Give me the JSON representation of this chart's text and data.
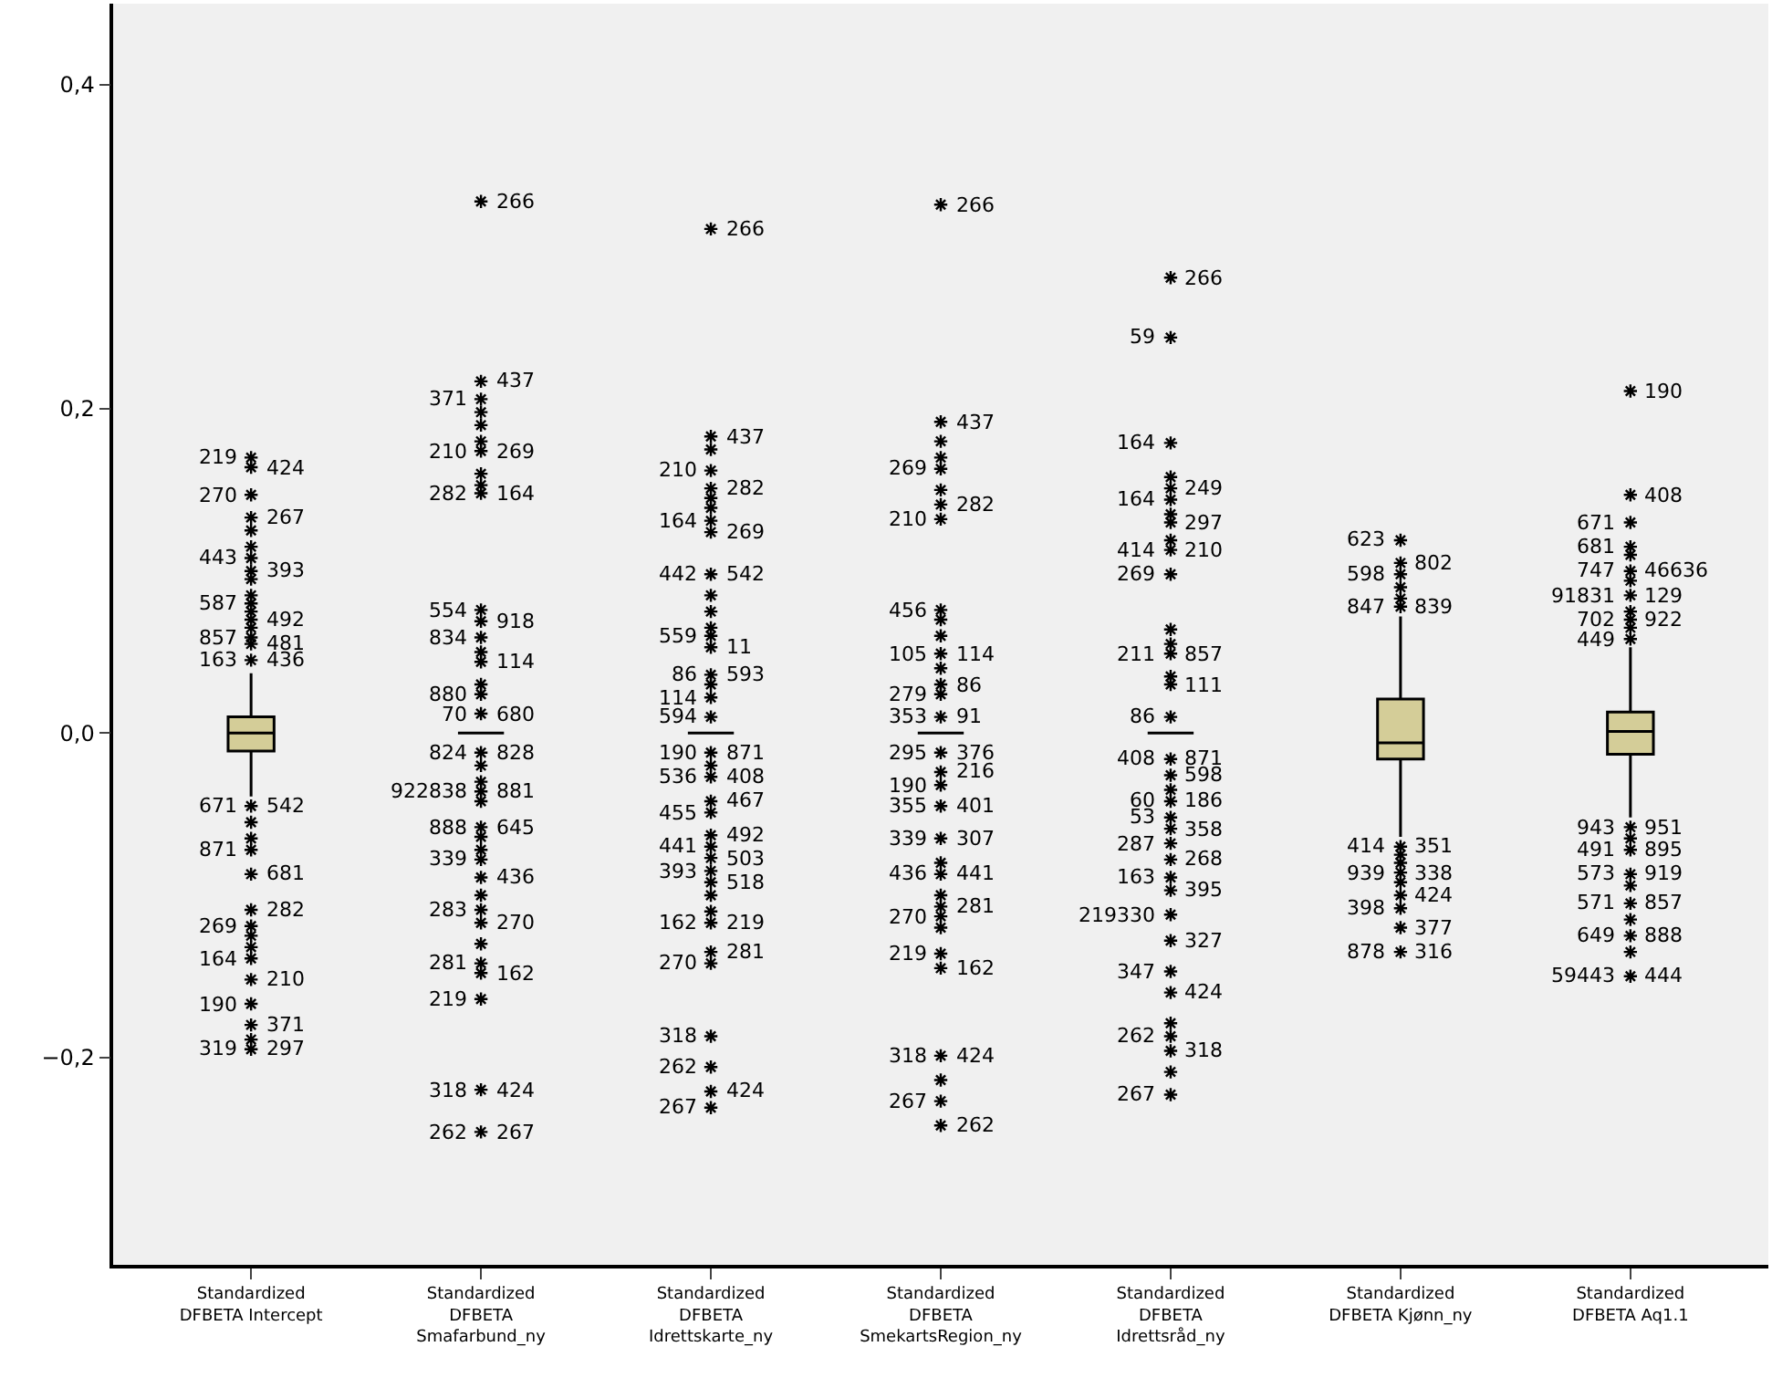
{
  "chart_data": {
    "type": "box",
    "categories": [
      "Standardized DFBETA Intercept",
      "Standardized DFBETA Smafarbund_ny",
      "Standardized DFBETA Idrettskarte_ny",
      "Standardized DFBETA SmekartsRegion_ny",
      "Standardized DFBETA Idrettsråd_ny",
      "Standardized DFBETA Kjønn_ny",
      "Standardized DFBETA Aq1.1"
    ],
    "boxes": [
      {
        "low": -0.039,
        "q1": -0.011,
        "median": 0.0,
        "q3": 0.01,
        "high": 0.037,
        "outliers": [
          0.125,
          0.115,
          0.095,
          0.085,
          0.075,
          0.065,
          -0.055,
          -0.065,
          -0.125,
          -0.132,
          -0.189
        ]
      },
      {
        "low": 0.0,
        "q1": 0.0,
        "median": 0.0,
        "q3": 0.0,
        "high": 0.0,
        "outliers": [
          0.198,
          0.19,
          0.18,
          0.16,
          0.153,
          0.05,
          0.03,
          -0.02,
          -0.03,
          -0.042,
          -0.064,
          -0.072,
          -0.1,
          -0.13
        ]
      },
      {
        "low": 0.0,
        "q1": 0.0,
        "median": 0.0,
        "q3": 0.0,
        "high": 0.0,
        "outliers": [
          0.175,
          0.145,
          0.139,
          0.085,
          0.075,
          0.065,
          0.03,
          -0.02,
          -0.1,
          -0.11
        ]
      },
      {
        "low": 0.0,
        "q1": 0.0,
        "median": 0.0,
        "q3": 0.0,
        "high": 0.0,
        "outliers": [
          0.18,
          0.17,
          0.15,
          0.07,
          0.06,
          0.04,
          -0.08,
          -0.1,
          -0.12,
          -0.214
        ]
      },
      {
        "low": 0.0,
        "q1": 0.0,
        "median": 0.0,
        "q3": 0.0,
        "high": 0.0,
        "outliers": [
          0.158,
          0.135,
          0.119,
          0.064,
          0.055,
          0.035,
          -0.035,
          -0.179,
          -0.209
        ]
      },
      {
        "low": -0.064,
        "q1": -0.016,
        "median": -0.006,
        "q3": 0.021,
        "high": 0.072,
        "outliers": [
          0.09,
          0.083,
          -0.075,
          -0.08,
          -0.092
        ]
      },
      {
        "low": -0.052,
        "q1": -0.013,
        "median": 0.001,
        "q3": 0.013,
        "high": 0.053,
        "outliers": [
          0.11,
          0.094,
          0.075,
          0.065,
          -0.065,
          -0.094,
          -0.115,
          -0.135
        ]
      }
    ],
    "colors": [
      "#d4cd98",
      "#000000",
      "#000000",
      "#000000",
      "#000000",
      "#d4cd98",
      "#d4cd98"
    ],
    "marker": "cross",
    "grid": false,
    "ylim": [
      -0.328,
      0.45
    ],
    "yticks": [
      {
        "value": -0.2,
        "label": "−0,2"
      },
      {
        "value": 0.0,
        "label": "0,0"
      },
      {
        "value": 0.2,
        "label": "0,2"
      },
      {
        "value": 0.4,
        "label": "0,4"
      }
    ],
    "series": [
      {
        "type": "scatter",
        "color": "#000000",
        "x": [
          "Standardized DFBETA Intercept",
          "Standardized DFBETA Intercept",
          "Standardized DFBETA Intercept",
          "Standardized DFBETA Intercept",
          "Standardized DFBETA Intercept",
          "Standardized DFBETA Intercept",
          "Standardized DFBETA Intercept",
          "Standardized DFBETA Intercept",
          "Standardized DFBETA Intercept",
          "Standardized DFBETA Intercept",
          "Standardized DFBETA Intercept",
          "Standardized DFBETA Intercept",
          "Standardized DFBETA Intercept",
          "Standardized DFBETA Intercept",
          "Standardized DFBETA Intercept",
          "Standardized DFBETA Intercept",
          "Standardized DFBETA Intercept",
          "Standardized DFBETA Intercept",
          "Standardized DFBETA Intercept",
          "Standardized DFBETA Intercept",
          "Standardized DFBETA Intercept"
        ],
        "values": [
          0.17,
          0.164,
          0.147,
          0.133,
          0.108,
          0.1,
          0.08,
          0.07,
          0.059,
          0.055,
          0.045,
          -0.045,
          -0.072,
          -0.087,
          -0.109,
          -0.119,
          -0.139,
          -0.152,
          -0.167,
          -0.18,
          -0.195
        ]
      },
      {
        "type": "scatter",
        "color": "#000000",
        "x": [
          "Standardized DFBETA Smafarbund_ny",
          "Standardized DFBETA Smafarbund_ny",
          "Standardized DFBETA Smafarbund_ny",
          "Standardized DFBETA Smafarbund_ny",
          "Standardized DFBETA Smafarbund_ny",
          "Standardized DFBETA Smafarbund_ny",
          "Standardized DFBETA Smafarbund_ny",
          "Standardized DFBETA Smafarbund_ny",
          "Standardized DFBETA Smafarbund_ny",
          "Standardized DFBETA Smafarbund_ny",
          "Standardized DFBETA Smafarbund_ny",
          "Standardized DFBETA Smafarbund_ny",
          "Standardized DFBETA Smafarbund_ny",
          "Standardized DFBETA Smafarbund_ny",
          "Standardized DFBETA Smafarbund_ny",
          "Standardized DFBETA Smafarbund_ny",
          "Standardized DFBETA Smafarbund_ny",
          "Standardized DFBETA Smafarbund_ny",
          "Standardized DFBETA Smafarbund_ny",
          "Standardized DFBETA Smafarbund_ny",
          "Standardized DFBETA Smafarbund_ny",
          "Standardized DFBETA Smafarbund_ny",
          "Standardized DFBETA Smafarbund_ny"
        ],
        "values": [
          0.328,
          0.217,
          0.206,
          0.174,
          0.148,
          0.076,
          0.069,
          0.059,
          0.044,
          0.024,
          0.012,
          -0.012,
          -0.036,
          -0.058,
          -0.078,
          -0.089,
          -0.109,
          -0.117,
          -0.142,
          -0.148,
          -0.164,
          -0.22,
          -0.246
        ]
      },
      {
        "type": "scatter",
        "color": "#000000",
        "x": [
          "Standardized DFBETA Idrettskarte_ny",
          "Standardized DFBETA Idrettskarte_ny",
          "Standardized DFBETA Idrettskarte_ny",
          "Standardized DFBETA Idrettskarte_ny",
          "Standardized DFBETA Idrettskarte_ny",
          "Standardized DFBETA Idrettskarte_ny",
          "Standardized DFBETA Idrettskarte_ny",
          "Standardized DFBETA Idrettskarte_ny",
          "Standardized DFBETA Idrettskarte_ny",
          "Standardized DFBETA Idrettskarte_ny",
          "Standardized DFBETA Idrettskarte_ny",
          "Standardized DFBETA Idrettskarte_ny",
          "Standardized DFBETA Idrettskarte_ny",
          "Standardized DFBETA Idrettskarte_ny",
          "Standardized DFBETA Idrettskarte_ny",
          "Standardized DFBETA Idrettskarte_ny",
          "Standardized DFBETA Idrettskarte_ny",
          "Standardized DFBETA Idrettskarte_ny",
          "Standardized DFBETA Idrettskarte_ny",
          "Standardized DFBETA Idrettskarte_ny",
          "Standardized DFBETA Idrettskarte_ny",
          "Standardized DFBETA Idrettskarte_ny",
          "Standardized DFBETA Idrettskarte_ny",
          "Standardized DFBETA Idrettskarte_ny",
          "Standardized DFBETA Idrettskarte_ny",
          "Standardized DFBETA Idrettskarte_ny",
          "Standardized DFBETA Idrettskarte_ny",
          "Standardized DFBETA Idrettskarte_ny"
        ],
        "values": [
          0.311,
          0.183,
          0.162,
          0.151,
          0.131,
          0.124,
          0.098,
          0.06,
          0.053,
          0.036,
          0.022,
          0.01,
          -0.012,
          -0.027,
          -0.042,
          -0.049,
          -0.063,
          -0.07,
          -0.077,
          -0.085,
          -0.092,
          -0.117,
          -0.135,
          -0.142,
          -0.187,
          -0.206,
          -0.221,
          -0.231
        ]
      },
      {
        "type": "scatter",
        "color": "#000000",
        "x": [
          "Standardized DFBETA SmekartsRegion_ny",
          "Standardized DFBETA SmekartsRegion_ny",
          "Standardized DFBETA SmekartsRegion_ny",
          "Standardized DFBETA SmekartsRegion_ny",
          "Standardized DFBETA SmekartsRegion_ny",
          "Standardized DFBETA SmekartsRegion_ny",
          "Standardized DFBETA SmekartsRegion_ny",
          "Standardized DFBETA SmekartsRegion_ny",
          "Standardized DFBETA SmekartsRegion_ny",
          "Standardized DFBETA SmekartsRegion_ny",
          "Standardized DFBETA SmekartsRegion_ny",
          "Standardized DFBETA SmekartsRegion_ny",
          "Standardized DFBETA SmekartsRegion_ny",
          "Standardized DFBETA SmekartsRegion_ny",
          "Standardized DFBETA SmekartsRegion_ny",
          "Standardized DFBETA SmekartsRegion_ny",
          "Standardized DFBETA SmekartsRegion_ny",
          "Standardized DFBETA SmekartsRegion_ny",
          "Standardized DFBETA SmekartsRegion_ny",
          "Standardized DFBETA SmekartsRegion_ny",
          "Standardized DFBETA SmekartsRegion_ny",
          "Standardized DFBETA SmekartsRegion_ny",
          "Standardized DFBETA SmekartsRegion_ny"
        ],
        "values": [
          0.326,
          0.192,
          0.163,
          0.141,
          0.132,
          0.076,
          0.049,
          0.03,
          0.024,
          0.01,
          -0.012,
          -0.024,
          -0.032,
          -0.045,
          -0.065,
          -0.087,
          -0.107,
          -0.113,
          -0.136,
          -0.145,
          -0.199,
          -0.227,
          -0.242
        ]
      },
      {
        "type": "scatter",
        "color": "#000000",
        "x": [
          "Standardized DFBETA Idrettsråd_ny",
          "Standardized DFBETA Idrettsråd_ny",
          "Standardized DFBETA Idrettsråd_ny",
          "Standardized DFBETA Idrettsråd_ny",
          "Standardized DFBETA Idrettsråd_ny",
          "Standardized DFBETA Idrettsråd_ny",
          "Standardized DFBETA Idrettsråd_ny",
          "Standardized DFBETA Idrettsråd_ny",
          "Standardized DFBETA Idrettsråd_ny",
          "Standardized DFBETA Idrettsråd_ny",
          "Standardized DFBETA Idrettsråd_ny",
          "Standardized DFBETA Idrettsråd_ny",
          "Standardized DFBETA Idrettsråd_ny",
          "Standardized DFBETA Idrettsråd_ny",
          "Standardized DFBETA Idrettsråd_ny",
          "Standardized DFBETA Idrettsråd_ny",
          "Standardized DFBETA Idrettsråd_ny",
          "Standardized DFBETA Idrettsråd_ny",
          "Standardized DFBETA Idrettsråd_ny",
          "Standardized DFBETA Idrettsråd_ny",
          "Standardized DFBETA Idrettsråd_ny",
          "Standardized DFBETA Idrettsråd_ny",
          "Standardized DFBETA Idrettsråd_ny",
          "Standardized DFBETA Idrettsråd_ny",
          "Standardized DFBETA Idrettsråd_ny",
          "Standardized DFBETA Idrettsråd_ny",
          "Standardized DFBETA Idrettsråd_ny"
        ],
        "values": [
          0.281,
          0.244,
          0.179,
          0.151,
          0.144,
          0.13,
          0.113,
          0.098,
          0.049,
          0.03,
          0.01,
          -0.016,
          -0.026,
          -0.042,
          -0.052,
          -0.059,
          -0.068,
          -0.078,
          -0.089,
          -0.097,
          -0.112,
          -0.128,
          -0.147,
          -0.16,
          -0.187,
          -0.196,
          -0.223
        ]
      },
      {
        "type": "scatter",
        "color": "#000000",
        "x": [
          "Standardized DFBETA Kjønn_ny",
          "Standardized DFBETA Kjønn_ny",
          "Standardized DFBETA Kjønn_ny",
          "Standardized DFBETA Kjønn_ny",
          "Standardized DFBETA Kjønn_ny",
          "Standardized DFBETA Kjønn_ny",
          "Standardized DFBETA Kjønn_ny",
          "Standardized DFBETA Kjønn_ny",
          "Standardized DFBETA Kjønn_ny",
          "Standardized DFBETA Kjønn_ny"
        ],
        "values": [
          0.119,
          0.105,
          0.098,
          0.078,
          -0.07,
          -0.086,
          -0.1,
          -0.108,
          -0.12,
          -0.135
        ]
      },
      {
        "type": "scatter",
        "color": "#000000",
        "x": [
          "Standardized DFBETA Aq1.1",
          "Standardized DFBETA Aq1.1",
          "Standardized DFBETA Aq1.1",
          "Standardized DFBETA Aq1.1",
          "Standardized DFBETA Aq1.1",
          "Standardized DFBETA Aq1.1",
          "Standardized DFBETA Aq1.1",
          "Standardized DFBETA Aq1.1",
          "Standardized DFBETA Aq1.1",
          "Standardized DFBETA Aq1.1",
          "Standardized DFBETA Aq1.1",
          "Standardized DFBETA Aq1.1",
          "Standardized DFBETA Aq1.1",
          "Standardized DFBETA Aq1.1"
        ],
        "values": [
          0.211,
          0.147,
          0.13,
          0.115,
          0.1,
          0.085,
          0.07,
          0.058,
          -0.058,
          -0.072,
          -0.087,
          -0.105,
          -0.125,
          -0.15
        ]
      }
    ],
    "annotations": [
      {
        "text": "219",
        "x": "Standardized DFBETA Intercept",
        "y": 0.17
      },
      {
        "text": "424",
        "x": "Standardized DFBETA Intercept",
        "y": 0.164
      },
      {
        "text": "270",
        "x": "Standardized DFBETA Intercept",
        "y": 0.147
      },
      {
        "text": "267",
        "x": "Standardized DFBETA Intercept",
        "y": 0.133
      },
      {
        "text": "443",
        "x": "Standardized DFBETA Intercept",
        "y": 0.108
      },
      {
        "text": "393",
        "x": "Standardized DFBETA Intercept",
        "y": 0.1
      },
      {
        "text": "587",
        "x": "Standardized DFBETA Intercept",
        "y": 0.08
      },
      {
        "text": "492",
        "x": "Standardized DFBETA Intercept",
        "y": 0.07
      },
      {
        "text": "857",
        "x": "Standardized DFBETA Intercept",
        "y": 0.059
      },
      {
        "text": "481",
        "x": "Standardized DFBETA Intercept",
        "y": 0.055
      },
      {
        "text": "163",
        "x": "Standardized DFBETA Intercept",
        "y": 0.045
      },
      {
        "text": "436",
        "x": "Standardized DFBETA Intercept",
        "y": 0.045
      },
      {
        "text": "671",
        "x": "Standardized DFBETA Intercept",
        "y": -0.045
      },
      {
        "text": "542",
        "x": "Standardized DFBETA Intercept",
        "y": -0.045
      },
      {
        "text": "871",
        "x": "Standardized DFBETA Intercept",
        "y": -0.072
      },
      {
        "text": "681",
        "x": "Standardized DFBETA Intercept",
        "y": -0.087
      },
      {
        "text": "269",
        "x": "Standardized DFBETA Intercept",
        "y": -0.119
      },
      {
        "text": "282",
        "x": "Standardized DFBETA Intercept",
        "y": -0.109
      },
      {
        "text": "164",
        "x": "Standardized DFBETA Intercept",
        "y": -0.139
      },
      {
        "text": "210",
        "x": "Standardized DFBETA Intercept",
        "y": -0.152
      },
      {
        "text": "190",
        "x": "Standardized DFBETA Intercept",
        "y": -0.167
      },
      {
        "text": "371",
        "x": "Standardized DFBETA Intercept",
        "y": -0.18
      },
      {
        "text": "319",
        "x": "Standardized DFBETA Intercept",
        "y": -0.195
      },
      {
        "text": "297",
        "x": "Standardized DFBETA Intercept",
        "y": -0.195
      },
      {
        "text": "371",
        "x": "Standardized DFBETA Smafarbund_ny",
        "y": 0.206
      },
      {
        "text": "266",
        "x": "Standardized DFBETA Smafarbund_ny",
        "y": 0.328
      },
      {
        "text": "210",
        "x": "Standardized DFBETA Smafarbund_ny",
        "y": 0.174
      },
      {
        "text": "437",
        "x": "Standardized DFBETA Smafarbund_ny",
        "y": 0.217
      },
      {
        "text": "282",
        "x": "Standardized DFBETA Smafarbund_ny",
        "y": 0.148
      },
      {
        "text": "269",
        "x": "Standardized DFBETA Smafarbund_ny",
        "y": 0.174
      },
      {
        "text": "554",
        "x": "Standardized DFBETA Smafarbund_ny",
        "y": 0.076
      },
      {
        "text": "164",
        "x": "Standardized DFBETA Smafarbund_ny",
        "y": 0.148
      },
      {
        "text": "834",
        "x": "Standardized DFBETA Smafarbund_ny",
        "y": 0.059
      },
      {
        "text": "918",
        "x": "Standardized DFBETA Smafarbund_ny",
        "y": 0.069
      },
      {
        "text": "880",
        "x": "Standardized DFBETA Smafarbund_ny",
        "y": 0.024
      },
      {
        "text": "114",
        "x": "Standardized DFBETA Smafarbund_ny",
        "y": 0.044
      },
      {
        "text": "70",
        "x": "Standardized DFBETA Smafarbund_ny",
        "y": 0.012
      },
      {
        "text": "680",
        "x": "Standardized DFBETA Smafarbund_ny",
        "y": 0.012
      },
      {
        "text": "824",
        "x": "Standardized DFBETA Smafarbund_ny",
        "y": -0.012
      },
      {
        "text": "828",
        "x": "Standardized DFBETA Smafarbund_ny",
        "y": -0.012
      },
      {
        "text": "922838",
        "x": "Standardized DFBETA Smafarbund_ny",
        "y": -0.036
      },
      {
        "text": "881",
        "x": "Standardized DFBETA Smafarbund_ny",
        "y": -0.036
      },
      {
        "text": "888",
        "x": "Standardized DFBETA Smafarbund_ny",
        "y": -0.058
      },
      {
        "text": "645",
        "x": "Standardized DFBETA Smafarbund_ny",
        "y": -0.058
      },
      {
        "text": "339",
        "x": "Standardized DFBETA Smafarbund_ny",
        "y": -0.078
      },
      {
        "text": "436",
        "x": "Standardized DFBETA Smafarbund_ny",
        "y": -0.089
      },
      {
        "text": "283",
        "x": "Standardized DFBETA Smafarbund_ny",
        "y": -0.109
      },
      {
        "text": "270",
        "x": "Standardized DFBETA Smafarbund_ny",
        "y": -0.117
      },
      {
        "text": "281",
        "x": "Standardized DFBETA Smafarbund_ny",
        "y": -0.142
      },
      {
        "text": "162",
        "x": "Standardized DFBETA Smafarbund_ny",
        "y": -0.148
      },
      {
        "text": "219",
        "x": "Standardized DFBETA Smafarbund_ny",
        "y": -0.164
      },
      {
        "text": "424",
        "x": "Standardized DFBETA Smafarbund_ny",
        "y": -0.22
      },
      {
        "text": "318",
        "x": "Standardized DFBETA Smafarbund_ny",
        "y": -0.22
      },
      {
        "text": "267",
        "x": "Standardized DFBETA Smafarbund_ny",
        "y": -0.246
      },
      {
        "text": "262",
        "x": "Standardized DFBETA Smafarbund_ny",
        "y": -0.246
      },
      {
        "text": "210",
        "x": "Standardized DFBETA Idrettskarte_ny",
        "y": 0.162
      },
      {
        "text": "266",
        "x": "Standardized DFBETA Idrettskarte_ny",
        "y": 0.311
      },
      {
        "text": "164",
        "x": "Standardized DFBETA Idrettskarte_ny",
        "y": 0.131
      },
      {
        "text": "437",
        "x": "Standardized DFBETA Idrettskarte_ny",
        "y": 0.183
      },
      {
        "text": "442",
        "x": "Standardized DFBETA Idrettskarte_ny",
        "y": 0.098
      },
      {
        "text": "282",
        "x": "Standardized DFBETA Idrettskarte_ny",
        "y": 0.151
      },
      {
        "text": "559",
        "x": "Standardized DFBETA Idrettskarte_ny",
        "y": 0.06
      },
      {
        "text": "269",
        "x": "Standardized DFBETA Idrettskarte_ny",
        "y": 0.124
      },
      {
        "text": "86",
        "x": "Standardized DFBETA Idrettskarte_ny",
        "y": 0.036
      },
      {
        "text": "542",
        "x": "Standardized DFBETA Idrettskarte_ny",
        "y": 0.098
      },
      {
        "text": "114",
        "x": "Standardized DFBETA Idrettskarte_ny",
        "y": 0.022
      },
      {
        "text": "11",
        "x": "Standardized DFBETA Idrettskarte_ny",
        "y": 0.053
      },
      {
        "text": "594",
        "x": "Standardized DFBETA Idrettskarte_ny",
        "y": 0.01
      },
      {
        "text": "593",
        "x": "Standardized DFBETA Idrettskarte_ny",
        "y": 0.036
      },
      {
        "text": "190",
        "x": "Standardized DFBETA Idrettskarte_ny",
        "y": -0.012
      },
      {
        "text": "871",
        "x": "Standardized DFBETA Idrettskarte_ny",
        "y": -0.012
      },
      {
        "text": "536",
        "x": "Standardized DFBETA Idrettskarte_ny",
        "y": -0.027
      },
      {
        "text": "408",
        "x": "Standardized DFBETA Idrettskarte_ny",
        "y": -0.027
      },
      {
        "text": "455",
        "x": "Standardized DFBETA Idrettskarte_ny",
        "y": -0.049
      },
      {
        "text": "467",
        "x": "Standardized DFBETA Idrettskarte_ny",
        "y": -0.042
      },
      {
        "text": "441",
        "x": "Standardized DFBETA Idrettskarte_ny",
        "y": -0.07
      },
      {
        "text": "492",
        "x": "Standardized DFBETA Idrettskarte_ny",
        "y": -0.063
      },
      {
        "text": "393",
        "x": "Standardized DFBETA Idrettskarte_ny",
        "y": -0.085
      },
      {
        "text": "503",
        "x": "Standardized DFBETA Idrettskarte_ny",
        "y": -0.077
      },
      {
        "text": "162",
        "x": "Standardized DFBETA Idrettskarte_ny",
        "y": -0.117
      },
      {
        "text": "518",
        "x": "Standardized DFBETA Idrettskarte_ny",
        "y": -0.092
      },
      {
        "text": "270",
        "x": "Standardized DFBETA Idrettskarte_ny",
        "y": -0.142
      },
      {
        "text": "219",
        "x": "Standardized DFBETA Idrettskarte_ny",
        "y": -0.117
      },
      {
        "text": "318",
        "x": "Standardized DFBETA Idrettskarte_ny",
        "y": -0.187
      },
      {
        "text": "281",
        "x": "Standardized DFBETA Idrettskarte_ny",
        "y": -0.135
      },
      {
        "text": "262",
        "x": "Standardized DFBETA Idrettskarte_ny",
        "y": -0.206
      },
      {
        "text": "424",
        "x": "Standardized DFBETA Idrettskarte_ny",
        "y": -0.221
      },
      {
        "text": "267",
        "x": "Standardized DFBETA Idrettskarte_ny",
        "y": -0.231
      },
      {
        "text": "269",
        "x": "Standardized DFBETA SmekartsRegion_ny",
        "y": 0.163
      },
      {
        "text": "266",
        "x": "Standardized DFBETA SmekartsRegion_ny",
        "y": 0.326
      },
      {
        "text": "210",
        "x": "Standardized DFBETA SmekartsRegion_ny",
        "y": 0.132
      },
      {
        "text": "437",
        "x": "Standardized DFBETA SmekartsRegion_ny",
        "y": 0.192
      },
      {
        "text": "456",
        "x": "Standardized DFBETA SmekartsRegion_ny",
        "y": 0.076
      },
      {
        "text": "282",
        "x": "Standardized DFBETA SmekartsRegion_ny",
        "y": 0.141
      },
      {
        "text": "105",
        "x": "Standardized DFBETA SmekartsRegion_ny",
        "y": 0.049
      },
      {
        "text": "114",
        "x": "Standardized DFBETA SmekartsRegion_ny",
        "y": 0.049
      },
      {
        "text": "279",
        "x": "Standardized DFBETA SmekartsRegion_ny",
        "y": 0.024
      },
      {
        "text": "86",
        "x": "Standardized DFBETA SmekartsRegion_ny",
        "y": 0.03
      },
      {
        "text": "353",
        "x": "Standardized DFBETA SmekartsRegion_ny",
        "y": 0.01
      },
      {
        "text": "91",
        "x": "Standardized DFBETA SmekartsRegion_ny",
        "y": 0.01
      },
      {
        "text": "295",
        "x": "Standardized DFBETA SmekartsRegion_ny",
        "y": -0.012
      },
      {
        "text": "376",
        "x": "Standardized DFBETA SmekartsRegion_ny",
        "y": -0.012
      },
      {
        "text": "190",
        "x": "Standardized DFBETA SmekartsRegion_ny",
        "y": -0.032
      },
      {
        "text": "216",
        "x": "Standardized DFBETA SmekartsRegion_ny",
        "y": -0.024
      },
      {
        "text": "355",
        "x": "Standardized DFBETA SmekartsRegion_ny",
        "y": -0.045
      },
      {
        "text": "401",
        "x": "Standardized DFBETA SmekartsRegion_ny",
        "y": -0.045
      },
      {
        "text": "339",
        "x": "Standardized DFBETA SmekartsRegion_ny",
        "y": -0.065
      },
      {
        "text": "307",
        "x": "Standardized DFBETA SmekartsRegion_ny",
        "y": -0.065
      },
      {
        "text": "436",
        "x": "Standardized DFBETA SmekartsRegion_ny",
        "y": -0.087
      },
      {
        "text": "441",
        "x": "Standardized DFBETA SmekartsRegion_ny",
        "y": -0.087
      },
      {
        "text": "270",
        "x": "Standardized DFBETA SmekartsRegion_ny",
        "y": -0.113
      },
      {
        "text": "281",
        "x": "Standardized DFBETA SmekartsRegion_ny",
        "y": -0.107
      },
      {
        "text": "219",
        "x": "Standardized DFBETA SmekartsRegion_ny",
        "y": -0.136
      },
      {
        "text": "162",
        "x": "Standardized DFBETA SmekartsRegion_ny",
        "y": -0.145
      },
      {
        "text": "318",
        "x": "Standardized DFBETA SmekartsRegion_ny",
        "y": -0.199
      },
      {
        "text": "424",
        "x": "Standardized DFBETA SmekartsRegion_ny",
        "y": -0.199
      },
      {
        "text": "267",
        "x": "Standardized DFBETA SmekartsRegion_ny",
        "y": -0.227
      },
      {
        "text": "262",
        "x": "Standardized DFBETA SmekartsRegion_ny",
        "y": -0.242
      },
      {
        "text": "59",
        "x": "Standardized DFBETA Idrettsråd_ny",
        "y": 0.244
      },
      {
        "text": "266",
        "x": "Standardized DFBETA Idrettsråd_ny",
        "y": 0.281
      },
      {
        "text": "164",
        "x": "Standardized DFBETA Idrettsråd_ny",
        "y": 0.179
      },
      {
        "text": "249",
        "x": "Standardized DFBETA Idrettsråd_ny",
        "y": 0.151
      },
      {
        "text": "164",
        "x": "Standardized DFBETA Idrettsråd_ny",
        "y": 0.144
      },
      {
        "text": "297",
        "x": "Standardized DFBETA Idrettsråd_ny",
        "y": 0.13
      },
      {
        "text": "414",
        "x": "Standardized DFBETA Idrettsråd_ny",
        "y": 0.113
      },
      {
        "text": "210",
        "x": "Standardized DFBETA Idrettsråd_ny",
        "y": 0.113
      },
      {
        "text": "269",
        "x": "Standardized DFBETA Idrettsråd_ny",
        "y": 0.098
      },
      {
        "text": "857",
        "x": "Standardized DFBETA Idrettsråd_ny",
        "y": 0.049
      },
      {
        "text": "211",
        "x": "Standardized DFBETA Idrettsråd_ny",
        "y": 0.049
      },
      {
        "text": "111",
        "x": "Standardized DFBETA Idrettsråd_ny",
        "y": 0.03
      },
      {
        "text": "86",
        "x": "Standardized DFBETA Idrettsråd_ny",
        "y": 0.01
      },
      {
        "text": "871",
        "x": "Standardized DFBETA Idrettsråd_ny",
        "y": -0.016
      },
      {
        "text": "408",
        "x": "Standardized DFBETA Idrettsråd_ny",
        "y": -0.016
      },
      {
        "text": "598",
        "x": "Standardized DFBETA Idrettsråd_ny",
        "y": -0.026
      },
      {
        "text": "60",
        "x": "Standardized DFBETA Idrettsråd_ny",
        "y": -0.042
      },
      {
        "text": "186",
        "x": "Standardized DFBETA Idrettsråd_ny",
        "y": -0.042
      },
      {
        "text": "53",
        "x": "Standardized DFBETA Idrettsråd_ny",
        "y": -0.052
      },
      {
        "text": "358",
        "x": "Standardized DFBETA Idrettsråd_ny",
        "y": -0.059
      },
      {
        "text": "287",
        "x": "Standardized DFBETA Idrettsråd_ny",
        "y": -0.068
      },
      {
        "text": "268",
        "x": "Standardized DFBETA Idrettsråd_ny",
        "y": -0.078
      },
      {
        "text": "163",
        "x": "Standardized DFBETA Idrettsråd_ny",
        "y": -0.089
      },
      {
        "text": "395",
        "x": "Standardized DFBETA Idrettsråd_ny",
        "y": -0.097
      },
      {
        "text": "219330",
        "x": "Standardized DFBETA Idrettsråd_ny",
        "y": -0.112
      },
      {
        "text": "327",
        "x": "Standardized DFBETA Idrettsråd_ny",
        "y": -0.128
      },
      {
        "text": "347",
        "x": "Standardized DFBETA Idrettsråd_ny",
        "y": -0.147
      },
      {
        "text": "424",
        "x": "Standardized DFBETA Idrettsråd_ny",
        "y": -0.16
      },
      {
        "text": "262",
        "x": "Standardized DFBETA Idrettsråd_ny",
        "y": -0.187
      },
      {
        "text": "318",
        "x": "Standardized DFBETA Idrettsråd_ny",
        "y": -0.196
      },
      {
        "text": "267",
        "x": "Standardized DFBETA Idrettsråd_ny",
        "y": -0.223
      },
      {
        "text": "623",
        "x": "Standardized DFBETA Kjønn_ny",
        "y": 0.119
      },
      {
        "text": "802",
        "x": "Standardized DFBETA Kjønn_ny",
        "y": 0.105
      },
      {
        "text": "598",
        "x": "Standardized DFBETA Kjønn_ny",
        "y": 0.098
      },
      {
        "text": "839",
        "x": "Standardized DFBETA Kjønn_ny",
        "y": 0.078
      },
      {
        "text": "847",
        "x": "Standardized DFBETA Kjønn_ny",
        "y": 0.078
      },
      {
        "text": "351",
        "x": "Standardized DFBETA Kjønn_ny",
        "y": -0.07
      },
      {
        "text": "414",
        "x": "Standardized DFBETA Kjønn_ny",
        "y": -0.07
      },
      {
        "text": "338",
        "x": "Standardized DFBETA Kjønn_ny",
        "y": -0.086
      },
      {
        "text": "939",
        "x": "Standardized DFBETA Kjønn_ny",
        "y": -0.086
      },
      {
        "text": "424",
        "x": "Standardized DFBETA Kjønn_ny",
        "y": -0.1
      },
      {
        "text": "398",
        "x": "Standardized DFBETA Kjønn_ny",
        "y": -0.108
      },
      {
        "text": "377",
        "x": "Standardized DFBETA Kjønn_ny",
        "y": -0.12
      },
      {
        "text": "878",
        "x": "Standardized DFBETA Kjønn_ny",
        "y": -0.135
      },
      {
        "text": "316",
        "x": "Standardized DFBETA Kjønn_ny",
        "y": -0.135
      },
      {
        "text": "671",
        "x": "Standardized DFBETA Aq1.1",
        "y": 0.13
      },
      {
        "text": "190",
        "x": "Standardized DFBETA Aq1.1",
        "y": 0.211
      },
      {
        "text": "681",
        "x": "Standardized DFBETA Aq1.1",
        "y": 0.115
      },
      {
        "text": "408",
        "x": "Standardized DFBETA Aq1.1",
        "y": 0.147
      },
      {
        "text": "747",
        "x": "Standardized DFBETA Aq1.1",
        "y": 0.1
      },
      {
        "text": "46636",
        "x": "Standardized DFBETA Aq1.1",
        "y": 0.1
      },
      {
        "text": "91831",
        "x": "Standardized DFBETA Aq1.1",
        "y": 0.085
      },
      {
        "text": "129",
        "x": "Standardized DFBETA Aq1.1",
        "y": 0.085
      },
      {
        "text": "702",
        "x": "Standardized DFBETA Aq1.1",
        "y": 0.07
      },
      {
        "text": "922",
        "x": "Standardized DFBETA Aq1.1",
        "y": 0.07
      },
      {
        "text": "449",
        "x": "Standardized DFBETA Aq1.1",
        "y": 0.058
      },
      {
        "text": "951",
        "x": "Standardized DFBETA Aq1.1",
        "y": -0.058
      },
      {
        "text": "943",
        "x": "Standardized DFBETA Aq1.1",
        "y": -0.058
      },
      {
        "text": "895",
        "x": "Standardized DFBETA Aq1.1",
        "y": -0.072
      },
      {
        "text": "491",
        "x": "Standardized DFBETA Aq1.1",
        "y": -0.072
      },
      {
        "text": "919",
        "x": "Standardized DFBETA Aq1.1",
        "y": -0.087
      },
      {
        "text": "573",
        "x": "Standardized DFBETA Aq1.1",
        "y": -0.087
      },
      {
        "text": "857",
        "x": "Standardized DFBETA Aq1.1",
        "y": -0.105
      },
      {
        "text": "571",
        "x": "Standardized DFBETA Aq1.1",
        "y": -0.105
      },
      {
        "text": "888",
        "x": "Standardized DFBETA Aq1.1",
        "y": -0.125
      },
      {
        "text": "649",
        "x": "Standardized DFBETA Aq1.1",
        "y": -0.125
      },
      {
        "text": "444",
        "x": "Standardized DFBETA Aq1.1",
        "y": -0.15
      },
      {
        "text": "59443",
        "x": "Standardized DFBETA Aq1.1",
        "y": -0.15
      }
    ]
  }
}
